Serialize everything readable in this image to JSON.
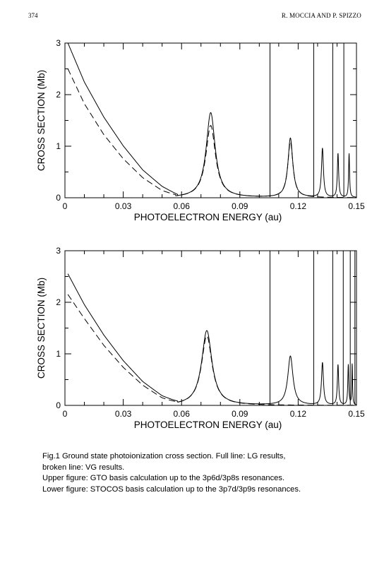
{
  "header": {
    "page_number": "374",
    "running_head": "R. MOCCIA AND P. SPIZZO"
  },
  "chart_data": [
    {
      "type": "line",
      "title": "",
      "xlabel": "PHOTOELECTRON  ENERGY  (au)",
      "ylabel": "CROSS  SECTION  (Mb)",
      "xlim": [
        0,
        0.15
      ],
      "ylim": [
        0,
        3
      ],
      "x_ticks": [
        "0",
        "0.03",
        "0.06",
        "0.09",
        "0.12",
        "0.15"
      ],
      "y_ticks": [
        "0",
        "1",
        "2",
        "3"
      ],
      "grid": false,
      "legend": "none",
      "series": [
        {
          "name": "LG",
          "style": "solid",
          "background": {
            "x": [
              0.0015,
              0.01,
              0.02,
              0.03,
              0.04,
              0.05,
              0.058
            ],
            "y": [
              3.0,
              2.24,
              1.56,
              1.0,
              0.53,
              0.2,
              0.02
            ]
          },
          "resonances": [
            {
              "x": 0.075,
              "peak": 1.65,
              "width": 0.0028
            },
            {
              "x": 0.116,
              "peak": 1.15,
              "width": 0.0015
            },
            {
              "x": 0.1325,
              "peak": 0.95,
              "width": 0.0006
            },
            {
              "x": 0.1405,
              "peak": 0.85,
              "width": 0.0004
            },
            {
              "x": 0.1462,
              "peak": 0.85,
              "width": 0.0003
            }
          ],
          "spikes": [
            0.1055,
            0.128,
            0.1378,
            0.1435
          ]
        },
        {
          "name": "VG",
          "style": "dashed",
          "background": {
            "x": [
              0.0015,
              0.01,
              0.02,
              0.03,
              0.04,
              0.05,
              0.057
            ],
            "y": [
              2.5,
              1.82,
              1.22,
              0.75,
              0.38,
              0.12,
              0.02
            ]
          },
          "resonances": [
            {
              "x": 0.075,
              "peak": 1.4,
              "width": 0.003
            },
            {
              "x": 0.116,
              "peak": 1.08,
              "width": 0.0016
            }
          ]
        }
      ]
    },
    {
      "type": "line",
      "title": "",
      "xlabel": "PHOTOELECTRON  ENERGY  (au)",
      "ylabel": "CROSS  SECTION  (Mb)",
      "xlim": [
        0,
        0.15
      ],
      "ylim": [
        0,
        3
      ],
      "x_ticks": [
        "0",
        "0.03",
        "0.06",
        "0.09",
        "0.12",
        "0.15"
      ],
      "y_ticks": [
        "0",
        "1",
        "2",
        "3"
      ],
      "grid": false,
      "legend": "none",
      "series": [
        {
          "name": "LG",
          "style": "solid",
          "background": {
            "x": [
              0.0015,
              0.01,
              0.02,
              0.03,
              0.04,
              0.05,
              0.058
            ],
            "y": [
              2.55,
              1.95,
              1.36,
              0.86,
              0.45,
              0.16,
              0.02
            ]
          },
          "resonances": [
            {
              "x": 0.073,
              "peak": 1.45,
              "width": 0.0032
            },
            {
              "x": 0.116,
              "peak": 0.95,
              "width": 0.0016
            },
            {
              "x": 0.1325,
              "peak": 0.82,
              "width": 0.0006
            },
            {
              "x": 0.1405,
              "peak": 0.78,
              "width": 0.0004
            },
            {
              "x": 0.1458,
              "peak": 0.78,
              "width": 0.0003
            },
            {
              "x": 0.1478,
              "peak": 0.8,
              "width": 0.0002
            }
          ],
          "spikes": [
            0.1055,
            0.128,
            0.1378,
            0.1432,
            0.1468,
            0.1492
          ]
        },
        {
          "name": "VG",
          "style": "dashed",
          "background": {
            "x": [
              0.0015,
              0.01,
              0.02,
              0.03,
              0.04,
              0.05,
              0.057
            ],
            "y": [
              2.15,
              1.68,
              1.16,
              0.73,
              0.38,
              0.12,
              0.02
            ]
          },
          "resonances": [
            {
              "x": 0.073,
              "peak": 1.35,
              "width": 0.0033
            }
          ]
        }
      ]
    }
  ],
  "caption": {
    "line1": "Fig.1  Ground state photoionization cross section. Full line: LG results,",
    "line2": "broken line: VG results.",
    "line3": "Upper figure: GTO basis calculation up to the 3p6d/3p8s resonances.",
    "line4": "Lower figure: STOCOS basis calculation up to the 3p7d/3p9s resonances."
  }
}
